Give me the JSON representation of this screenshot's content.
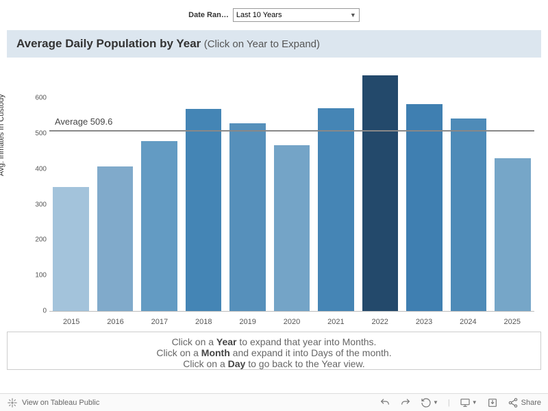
{
  "controls": {
    "date_range_label": "Date Ran…",
    "date_range_value": "Last 10 Years"
  },
  "chart": {
    "type": "bar",
    "title": "Average Daily Population by Year",
    "subtitle": "(Click on Year to Expand)",
    "ylabel": "Avg. Inmates In Custody",
    "categories": [
      "2015",
      "2016",
      "2017",
      "2018",
      "2019",
      "2020",
      "2021",
      "2022",
      "2023",
      "2024",
      "2025"
    ],
    "values": [
      350,
      408,
      480,
      570,
      530,
      468,
      572,
      665,
      584,
      542,
      430
    ],
    "bar_colors": [
      "#a3c3db",
      "#80aacb",
      "#639bc3",
      "#4485b5",
      "#5690bb",
      "#74a4c7",
      "#4585b5",
      "#23496b",
      "#3f7fb1",
      "#4e8bb8",
      "#76a6c8"
    ],
    "ymin": 0,
    "ymax": 680,
    "yticks": [
      0,
      100,
      200,
      300,
      400,
      500,
      600
    ],
    "average_label": "Average",
    "average_value_text": "509.6",
    "average_value": 509.6,
    "gridline_color": "#dddddd",
    "avg_line_color": "#888888",
    "background_color": "#ffffff",
    "title_bg": "#dce6ef",
    "label_fontsize": 11,
    "title_fontsize": 17
  },
  "instructions": {
    "line1a": "Click on a ",
    "line1b": "Year",
    "line1c": " to expand that year into Months.",
    "line2a": "Click on a ",
    "line2b": "Month",
    "line2c": " and expand it into Days of the month.",
    "line3a": "Click on a ",
    "line3b": "Day",
    "line3c": " to go back to the Year view."
  },
  "footer": {
    "view_on": "View on Tableau Public",
    "share": "Share"
  }
}
